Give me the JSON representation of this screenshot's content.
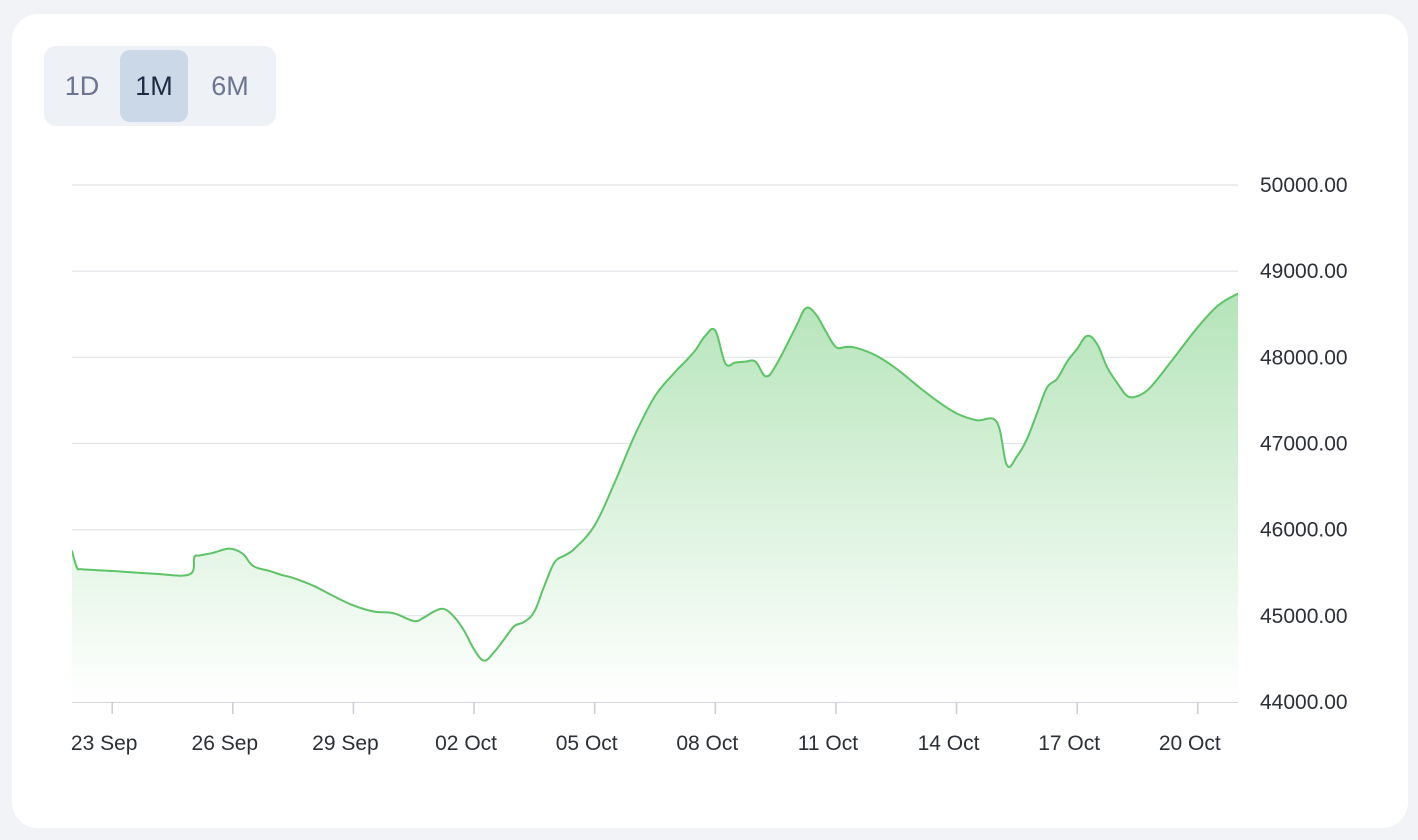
{
  "range_selector": {
    "options": [
      {
        "label": "1D",
        "active": false
      },
      {
        "label": "1M",
        "active": true
      },
      {
        "label": "6M",
        "active": false
      }
    ]
  },
  "colors": {
    "line": "#5cc466",
    "fill_top": "#a9e0ae",
    "fill_bottom": "#ffffff",
    "grid": "#e2e4e8",
    "axis": "#c9ccd2",
    "tab_active_bg": "#cbd8e7"
  },
  "chart_data": {
    "type": "area",
    "title": "",
    "xlabel": "",
    "ylabel": "",
    "y_axis_position": "right",
    "grid": true,
    "ylim": [
      44000,
      50000
    ],
    "xlim": [
      "2023-09-22",
      "2023-10-21"
    ],
    "x_ticks": [
      "2023-09-23",
      "2023-09-26",
      "2023-09-29",
      "2023-10-02",
      "2023-10-05",
      "2023-10-08",
      "2023-10-11",
      "2023-10-14",
      "2023-10-17",
      "2023-10-20"
    ],
    "x_tick_labels": [
      "23 Sep",
      "26 Sep",
      "29 Sep",
      "02 Oct",
      "05 Oct",
      "08 Oct",
      "11 Oct",
      "14 Oct",
      "17 Oct",
      "20 Oct"
    ],
    "y_ticks": [
      44000,
      45000,
      46000,
      47000,
      48000,
      49000,
      50000
    ],
    "y_tick_labels": [
      "44000.00",
      "45000.00",
      "46000.00",
      "47000.00",
      "48000.00",
      "49000.00",
      "50000.00"
    ],
    "series": [
      {
        "name": "",
        "x": [
          "2023-09-22 00:00",
          "2023-09-22 03:00",
          "2023-09-22 06:00",
          "2023-09-23 00:00",
          "2023-09-24 00:00",
          "2023-09-24 22:00",
          "2023-09-25 01:00",
          "2023-09-25 04:00",
          "2023-09-25 12:00",
          "2023-09-25 22:00",
          "2023-09-26 06:00",
          "2023-09-26 12:00",
          "2023-09-26 22:00",
          "2023-09-27 06:00",
          "2023-09-27 12:00",
          "2023-09-28 00:00",
          "2023-09-28 12:00",
          "2023-09-29 00:00",
          "2023-09-29 12:00",
          "2023-09-30 00:00",
          "2023-09-30 12:00",
          "2023-09-30 18:00",
          "2023-10-01 00:00",
          "2023-10-01 06:00",
          "2023-10-01 12:00",
          "2023-10-01 18:00",
          "2023-10-02 00:00",
          "2023-10-02 06:00",
          "2023-10-02 12:00",
          "2023-10-02 18:00",
          "2023-10-03 00:00",
          "2023-10-03 06:00",
          "2023-10-03 12:00",
          "2023-10-03 18:00",
          "2023-10-04 00:00",
          "2023-10-04 06:00",
          "2023-10-04 12:00",
          "2023-10-05 00:00",
          "2023-10-05 12:00",
          "2023-10-06 00:00",
          "2023-10-06 12:00",
          "2023-10-07 00:00",
          "2023-10-07 06:00",
          "2023-10-07 12:00",
          "2023-10-07 18:00",
          "2023-10-08 00:00",
          "2023-10-08 06:00",
          "2023-10-08 12:00",
          "2023-10-08 18:00",
          "2023-10-09 00:00",
          "2023-10-09 06:00",
          "2023-10-09 12:00",
          "2023-10-10 00:00",
          "2023-10-10 06:00",
          "2023-10-10 12:00",
          "2023-10-10 18:00",
          "2023-10-11 00:00",
          "2023-10-11 06:00",
          "2023-10-11 12:00",
          "2023-10-12 00:00",
          "2023-10-12 12:00",
          "2023-10-13 00:00",
          "2023-10-13 12:00",
          "2023-10-14 00:00",
          "2023-10-14 12:00",
          "2023-10-15 00:00",
          "2023-10-15 06:00",
          "2023-10-15 12:00",
          "2023-10-15 18:00",
          "2023-10-16 00:00",
          "2023-10-16 06:00",
          "2023-10-16 12:00",
          "2023-10-16 18:00",
          "2023-10-17 00:00",
          "2023-10-17 06:00",
          "2023-10-17 12:00",
          "2023-10-17 18:00",
          "2023-10-18 00:00",
          "2023-10-18 06:00",
          "2023-10-18 12:00",
          "2023-10-18 18:00",
          "2023-10-19 00:00",
          "2023-10-19 12:00",
          "2023-10-20 00:00",
          "2023-10-20 12:00",
          "2023-10-21 00:00",
          "2023-10-21 06:00",
          "2023-10-21 12:00",
          "2023-10-21 18:00"
        ],
        "values": [
          45750,
          45560,
          45540,
          45520,
          45490,
          45480,
          45680,
          45700,
          45730,
          45780,
          45720,
          45580,
          45520,
          45470,
          45440,
          45350,
          45230,
          45120,
          45050,
          45030,
          44940,
          44980,
          45050,
          45080,
          44990,
          44830,
          44610,
          44480,
          44580,
          44730,
          44880,
          44930,
          45050,
          45350,
          45620,
          45700,
          45780,
          46050,
          46550,
          47100,
          47550,
          47830,
          47950,
          48080,
          48250,
          48310,
          47930,
          47940,
          47950,
          47950,
          47780,
          47900,
          48350,
          48570,
          48500,
          48300,
          48120,
          48120,
          48110,
          48020,
          47870,
          47680,
          47500,
          47350,
          47270,
          47250,
          46750,
          46850,
          47050,
          47350,
          47650,
          47750,
          47950,
          48100,
          48250,
          48150,
          47880,
          47700,
          47550,
          47550,
          47620,
          47750,
          48050,
          48350,
          48600,
          48740,
          48780,
          49100,
          49150
        ]
      }
    ]
  }
}
